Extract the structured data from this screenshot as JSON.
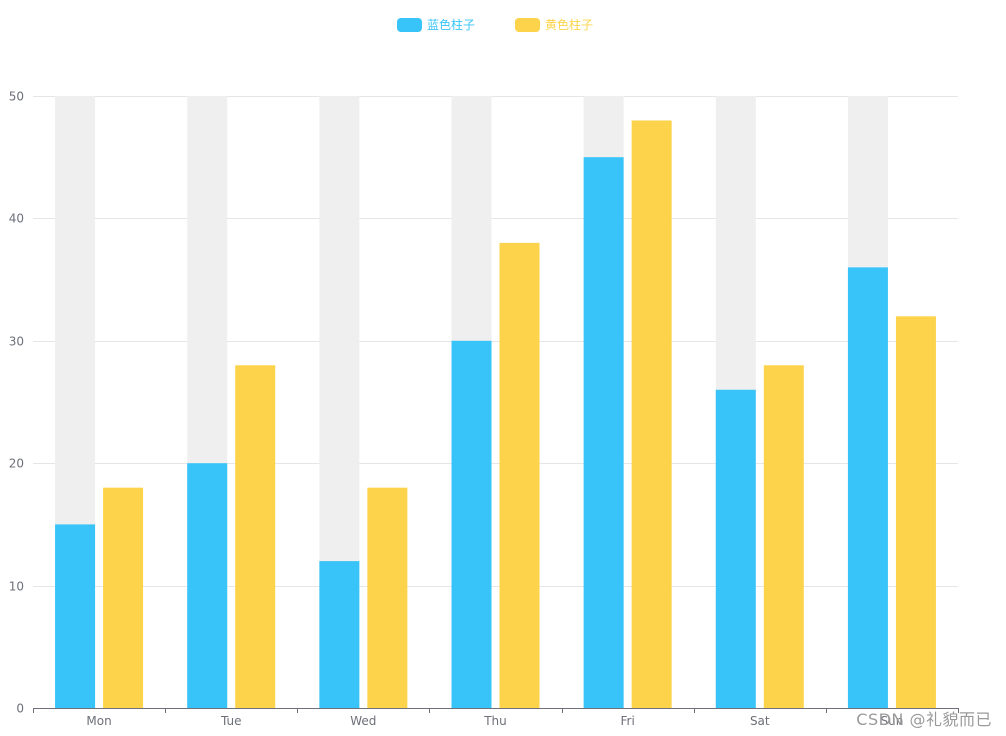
{
  "chart_data": {
    "type": "bar",
    "categories": [
      "Mon",
      "Tue",
      "Wed",
      "Thu",
      "Fri",
      "Sat",
      "Sun"
    ],
    "series": [
      {
        "name": "蓝色柱子",
        "color": "#38c4f8",
        "values": [
          15,
          20,
          12,
          30,
          45,
          26,
          36
        ]
      },
      {
        "name": "黄色柱子",
        "color": "#fcd34a",
        "values": [
          18,
          28,
          18,
          38,
          48,
          28,
          32
        ]
      }
    ],
    "background_bars": {
      "shown_for_series": "蓝色柱子",
      "color": "#efefef"
    },
    "ylim": [
      0,
      50
    ],
    "yticks": [
      0,
      10,
      20,
      30,
      40,
      50
    ],
    "grid": true,
    "legend_position": "top-center"
  },
  "watermark": "CSDN @礼貌而已"
}
